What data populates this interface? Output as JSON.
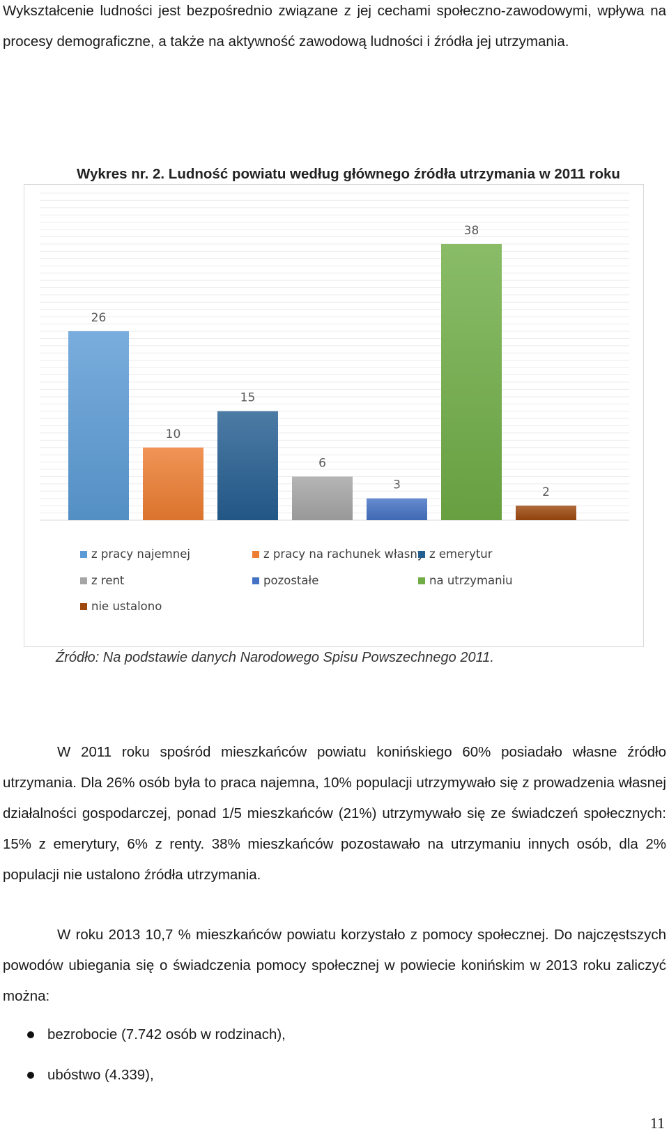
{
  "intro": {
    "text": "Wykształcenie ludności jest bezpośrednio związane z jej cechami społeczno-zawodowymi, wpływa na procesy demograficzne, a także na aktywność zawodową ludności i źródła jej utrzymania."
  },
  "chart_heading": "Wykres nr. 2. Ludność powiatu według głównego źródła utrzymania w 2011 roku",
  "chart_data": {
    "type": "bar",
    "title": "",
    "xlabel": "",
    "ylabel": "",
    "ylim": [
      0,
      45
    ],
    "grid": true,
    "legend_position": "bottom",
    "categories": [
      "z pracy najemnej",
      "z pracy na rachunek własny",
      "z emerytur",
      "z rent",
      "pozostałe",
      "na utrzymaniu",
      "nie ustalono"
    ],
    "values": [
      26,
      10,
      15,
      6,
      3,
      38,
      2
    ],
    "colors": [
      "#5b9bd5",
      "#ed7d31",
      "#255e91",
      "#a5a5a5",
      "#4472c4",
      "#70ad47",
      "#9e480e"
    ],
    "value_labels": [
      "26",
      "10",
      "15",
      "6",
      "3",
      "38",
      "2"
    ]
  },
  "source_note": "Źródło: Na podstawie danych Narodowego Spisu Powszechnego 2011.",
  "paragraph1": "W 2011 roku spośród mieszkańców powiatu konińskiego 60% posiadało własne źródło utrzymania. Dla 26% osób była to praca najemna, 10% populacji utrzymywało się z prowadzenia własnej działalności gospodarczej, ponad 1/5 mieszkańców (21%) utrzymywało się ze świadczeń społecznych: 15% z emerytury, 6% z renty. 38% mieszkańców pozostawało na utrzymaniu innych osób, dla 2% populacji nie ustalono źródła utrzymania.",
  "paragraph2": "W roku 2013 10,7 % mieszkańców powiatu korzystało z pomocy społecznej. Do najczęstszych powodów ubiegania się o świadczenia pomocy społecznej w powiecie konińskim w 2013 roku zaliczyć można:",
  "bullets": [
    "bezrobocie (7.742 osób w rodzinach),",
    "ubóstwo (4.339),"
  ],
  "page_number": "11"
}
